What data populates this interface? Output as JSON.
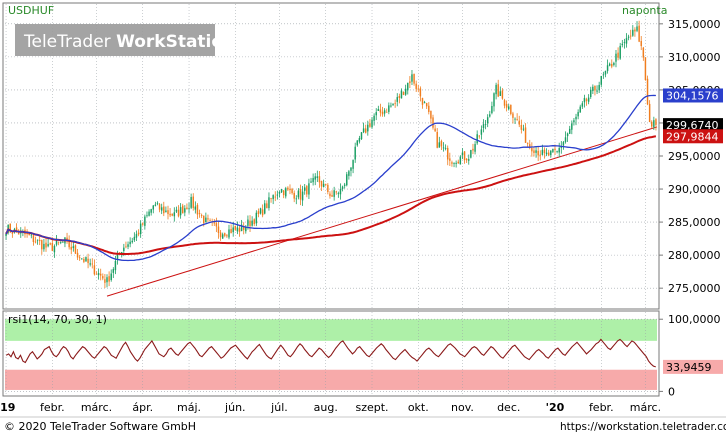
{
  "header": {
    "symbol": "USDHUF",
    "interval": "naponta",
    "watermark_part1": "TeleTrader ",
    "watermark_part2": "WorkStation"
  },
  "footer": {
    "copyright": "© 2020 TeleTrader Software GmbH",
    "url": "https://workstation.teletrader.com"
  },
  "colors": {
    "background": "#ffffff",
    "up_candle": "#1a9e63",
    "down_candle": "#f07d1e",
    "ma_short": "#2a3fcc",
    "ma_long": "#cc1111",
    "trendline": "#cc1111",
    "rsi_line": "#8b1a1a",
    "rsi_upper_zone": "#aef0a8",
    "rsi_lower_zone": "#f7aaaa",
    "grid": "#9aa0a6"
  },
  "chart_data": [
    {
      "type": "candlestick",
      "title": "USDHUF",
      "subtitle": "naponta",
      "ylim": [
        272,
        318
      ],
      "y_ticks": [
        "275,0000",
        "280,0000",
        "285,0000",
        "290,0000",
        "295,0000",
        "300,0000",
        "305,0000",
        "310,0000",
        "315,0000"
      ],
      "y_tick_values": [
        275,
        280,
        285,
        290,
        295,
        300,
        305,
        310,
        315
      ],
      "x_labels": [
        "'19",
        "febr.",
        "márc.",
        "ápr.",
        "máj.",
        "jún.",
        "júl.",
        "aug.",
        "szept.",
        "okt.",
        "nov.",
        "dec.",
        "'20",
        "febr.",
        "márc."
      ],
      "close_anchors": [
        [
          0,
          284
        ],
        [
          10,
          283
        ],
        [
          20,
          281
        ],
        [
          28,
          282
        ],
        [
          38,
          279
        ],
        [
          48,
          276
        ],
        [
          55,
          281
        ],
        [
          62,
          283
        ],
        [
          70,
          287.5
        ],
        [
          80,
          286
        ],
        [
          88,
          288
        ],
        [
          95,
          285
        ],
        [
          102,
          283.5
        ],
        [
          112,
          284
        ],
        [
          120,
          286
        ],
        [
          130,
          290
        ],
        [
          140,
          289
        ],
        [
          148,
          291.5
        ],
        [
          155,
          289
        ],
        [
          160,
          290
        ],
        [
          168,
          297.5
        ],
        [
          175,
          301
        ],
        [
          185,
          303
        ],
        [
          193,
          307
        ],
        [
          200,
          302
        ],
        [
          205,
          297
        ],
        [
          212,
          294.5
        ],
        [
          220,
          295
        ],
        [
          228,
          300
        ],
        [
          233,
          305
        ],
        [
          242,
          301
        ],
        [
          248,
          297
        ],
        [
          256,
          295
        ],
        [
          262,
          295.5
        ],
        [
          268,
          299
        ],
        [
          275,
          303
        ],
        [
          282,
          306
        ],
        [
          290,
          310
        ],
        [
          296,
          313
        ],
        [
          300,
          314
        ],
        [
          303,
          310
        ],
        [
          306,
          300
        ],
        [
          309,
          299.67
        ]
      ],
      "ohlc_note": "daily candles; closes interpolated between anchors",
      "last_close": 299.674,
      "ma_short_last": 304.1576,
      "ma_long_last": 297.9844,
      "price_labels": {
        "close": "299,6740",
        "ma_short": "304,1576",
        "ma_long": "297,9844"
      },
      "series": [
        {
          "kind": "candles"
        },
        {
          "kind": "moving_average_short",
          "last": 304.1576
        },
        {
          "kind": "moving_average_long",
          "last": 297.9844
        },
        {
          "kind": "trendline",
          "from": [
            48,
            273.8
          ],
          "to": [
            309,
            298.6
          ]
        }
      ]
    },
    {
      "type": "line",
      "title": "rsi1(14, 70, 30, 1)",
      "ylim": [
        -5,
        110
      ],
      "y_ticks": [
        "100,0000",
        "0"
      ],
      "y_tick_values": [
        100,
        0
      ],
      "overbought": 70,
      "oversold": 30,
      "last_value": 33.9459,
      "last_label": "33,9459",
      "values": [
        50,
        52,
        48,
        55,
        47,
        45,
        50,
        42,
        40,
        46,
        52,
        55,
        50,
        45,
        48,
        52,
        58,
        60,
        62,
        55,
        50,
        48,
        52,
        58,
        62,
        60,
        55,
        48,
        45,
        50,
        54,
        58,
        62,
        60,
        56,
        52,
        48,
        46,
        50,
        54,
        58,
        62,
        60,
        55,
        50,
        48,
        46,
        52,
        58,
        64,
        68,
        62,
        55,
        50,
        45,
        42,
        46,
        52,
        58,
        62,
        66,
        70,
        64,
        58,
        52,
        50,
        48,
        52,
        58,
        60,
        56,
        52,
        50,
        54,
        58,
        62,
        66,
        68,
        64,
        60,
        55,
        50,
        48,
        52,
        56,
        60,
        62,
        58,
        54,
        50,
        46,
        48,
        52,
        56,
        60,
        62,
        64,
        60,
        56,
        52,
        48,
        45,
        50,
        55,
        58,
        62,
        65,
        60,
        55,
        50,
        47,
        45,
        50,
        55,
        60,
        64,
        60,
        55,
        50,
        48,
        52,
        57,
        62,
        66,
        63,
        58,
        54,
        50,
        48,
        52,
        56,
        60,
        58,
        54,
        50,
        47,
        50,
        55,
        60,
        64,
        68,
        70,
        65,
        60,
        56,
        52,
        55,
        60,
        62,
        58,
        54,
        50,
        48,
        52,
        56,
        60,
        63,
        66,
        63,
        58,
        54,
        50,
        46,
        44,
        48,
        52,
        55,
        58,
        54,
        50,
        47,
        45,
        42,
        46,
        50,
        54,
        58,
        60,
        57,
        53,
        50,
        48,
        52,
        56,
        60,
        64,
        66,
        63,
        60,
        56,
        52,
        50,
        48,
        52,
        56,
        60,
        62,
        60,
        56,
        52,
        50,
        54,
        58,
        62,
        60,
        56,
        52,
        48,
        46,
        50,
        54,
        58,
        62,
        64,
        60,
        56,
        52,
        48,
        46,
        44,
        48,
        52,
        56,
        58,
        55,
        52,
        48,
        46,
        50,
        54,
        58,
        60,
        56,
        52,
        50,
        54,
        58,
        62,
        65,
        68,
        64,
        60,
        56,
        52,
        55,
        58,
        62,
        66,
        68,
        72,
        68,
        64,
        60,
        58,
        62,
        66,
        70,
        72,
        69,
        65,
        62,
        66,
        70,
        68,
        64,
        60,
        56,
        52,
        48,
        42,
        38,
        35,
        33.9
      ]
    }
  ]
}
